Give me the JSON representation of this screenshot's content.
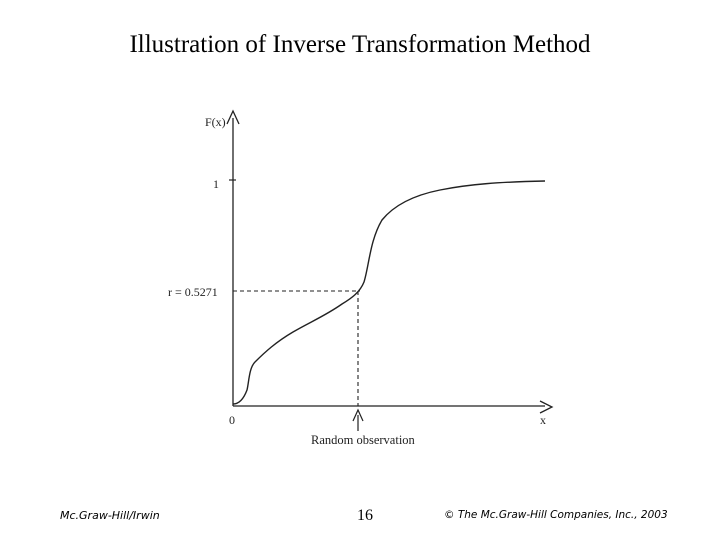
{
  "slide": {
    "title": "Illustration of Inverse Transformation Method"
  },
  "diagram": {
    "y_axis_label": "F(x)",
    "x_axis_label": "x",
    "origin_label": "0",
    "y_tick_one_label": "1",
    "r_label": "r = 0.5271",
    "random_observation_label": "Random observation"
  },
  "footer": {
    "publisher": "Mc.Graw-Hill/Irwin",
    "page_number": "16",
    "copyright": "© The Mc.Graw-Hill Companies, Inc., 2003"
  }
}
